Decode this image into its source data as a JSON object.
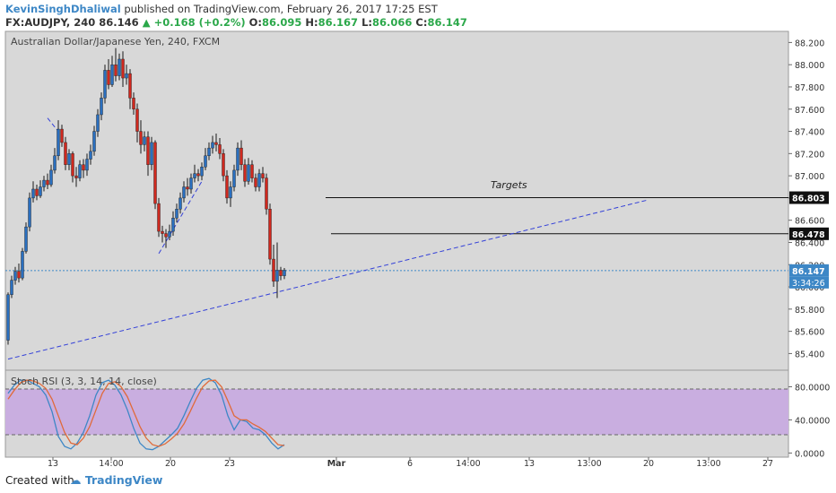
{
  "header": {
    "author": "KevinSinghDhaliwal",
    "published_text": " published on TradingView.com, February 26, 2017 17:25 EST",
    "symbol_line": {
      "symbol": "FX:AUDJPY, 240",
      "price": "86.146",
      "change": "+0.168 (+0.2%)",
      "open_label": "O:",
      "open": "86.095",
      "high_label": "H:",
      "high": "86.167",
      "low_label": "L:",
      "low": "86.066",
      "close_label": "C:",
      "close": "86.147"
    }
  },
  "footer": {
    "created_with": "Created with",
    "brand": "TradingView"
  },
  "chart_data": [
    {
      "type": "candlestick",
      "title": "Australian Dollar/Japanese Yen, 240, FXCM",
      "ylim": [
        85.25,
        88.3
      ],
      "y_ticks": [
        "88.200",
        "88.000",
        "87.800",
        "87.600",
        "87.400",
        "87.200",
        "87.000",
        "86.800",
        "86.600",
        "86.400",
        "86.200",
        "86.000",
        "85.800",
        "85.600",
        "85.400"
      ],
      "x_ticks": [
        "13",
        "14:00",
        "20",
        "23",
        "Mar",
        "6",
        "14:00",
        "13",
        "13:00",
        "20",
        "13:00",
        "27"
      ],
      "candles": [
        [
          85.52,
          85.93,
          85.48,
          85.95
        ],
        [
          85.93,
          86.06,
          85.9,
          86.1
        ],
        [
          86.06,
          86.14,
          86.02,
          86.18
        ],
        [
          86.14,
          86.08,
          86.04,
          86.21
        ],
        [
          86.08,
          86.32,
          86.06,
          86.35
        ],
        [
          86.32,
          86.54,
          86.3,
          86.58
        ],
        [
          86.54,
          86.8,
          86.5,
          86.85
        ],
        [
          86.8,
          86.88,
          86.76,
          86.95
        ],
        [
          86.88,
          86.82,
          86.78,
          86.92
        ],
        [
          86.82,
          86.9,
          86.8,
          86.96
        ],
        [
          86.9,
          86.96,
          86.86,
          87.0
        ],
        [
          86.96,
          86.92,
          86.88,
          87.02
        ],
        [
          86.92,
          87.05,
          86.9,
          87.1
        ],
        [
          87.05,
          87.18,
          87.02,
          87.25
        ],
        [
          87.18,
          87.42,
          87.14,
          87.5
        ],
        [
          87.42,
          87.3,
          87.26,
          87.46
        ],
        [
          87.3,
          87.1,
          87.05,
          87.35
        ],
        [
          87.1,
          87.2,
          87.05,
          87.24
        ],
        [
          87.2,
          87.0,
          86.94,
          87.22
        ],
        [
          87.0,
          86.98,
          86.9,
          87.08
        ],
        [
          86.98,
          87.1,
          86.95,
          87.14
        ],
        [
          87.1,
          87.05,
          86.98,
          87.15
        ],
        [
          87.05,
          87.15,
          87.0,
          87.2
        ],
        [
          87.15,
          87.22,
          87.1,
          87.28
        ],
        [
          87.22,
          87.4,
          87.18,
          87.45
        ],
        [
          87.4,
          87.55,
          87.35,
          87.6
        ],
        [
          87.55,
          87.7,
          87.5,
          87.75
        ],
        [
          87.7,
          87.95,
          87.65,
          88.0
        ],
        [
          87.95,
          87.82,
          87.78,
          88.05
        ],
        [
          87.82,
          88.0,
          87.8,
          88.08
        ],
        [
          88.0,
          87.9,
          87.85,
          88.15
        ],
        [
          87.9,
          88.05,
          87.86,
          88.1
        ],
        [
          88.05,
          87.88,
          87.8,
          88.12
        ],
        [
          87.88,
          87.92,
          87.82,
          88.0
        ],
        [
          87.92,
          87.7,
          87.6,
          87.96
        ],
        [
          87.7,
          87.6,
          87.55,
          87.75
        ],
        [
          87.6,
          87.4,
          87.3,
          87.65
        ],
        [
          87.4,
          87.28,
          87.2,
          87.5
        ],
        [
          87.28,
          87.35,
          87.22,
          87.4
        ],
        [
          87.35,
          87.1,
          87.0,
          87.4
        ],
        [
          87.1,
          87.3,
          87.05,
          87.35
        ],
        [
          87.3,
          86.75,
          86.7,
          87.32
        ],
        [
          86.75,
          86.5,
          86.45,
          86.8
        ],
        [
          86.5,
          86.48,
          86.4,
          86.55
        ],
        [
          86.48,
          86.45,
          86.35,
          86.52
        ],
        [
          86.45,
          86.5,
          86.42,
          86.56
        ],
        [
          86.5,
          86.62,
          86.46,
          86.68
        ],
        [
          86.62,
          86.7,
          86.58,
          86.75
        ],
        [
          86.7,
          86.8,
          86.66,
          86.85
        ],
        [
          86.8,
          86.9,
          86.76,
          86.95
        ],
        [
          86.9,
          86.88,
          86.82,
          86.98
        ],
        [
          86.88,
          86.98,
          86.84,
          87.02
        ],
        [
          86.98,
          87.02,
          86.94,
          87.1
        ],
        [
          87.02,
          87.0,
          86.95,
          87.06
        ],
        [
          87.0,
          87.08,
          86.96,
          87.12
        ],
        [
          87.08,
          87.18,
          87.05,
          87.25
        ],
        [
          87.18,
          87.25,
          87.14,
          87.3
        ],
        [
          87.25,
          87.3,
          87.2,
          87.36
        ],
        [
          87.3,
          87.28,
          87.22,
          87.38
        ],
        [
          87.28,
          87.2,
          87.15,
          87.34
        ],
        [
          87.2,
          87.0,
          86.95,
          87.24
        ],
        [
          87.0,
          86.8,
          86.75,
          87.05
        ],
        [
          86.8,
          86.9,
          86.72,
          86.95
        ],
        [
          86.9,
          87.05,
          86.86,
          87.1
        ],
        [
          87.05,
          87.25,
          87.0,
          87.3
        ],
        [
          87.25,
          87.1,
          87.05,
          87.32
        ],
        [
          87.1,
          86.95,
          86.9,
          87.15
        ],
        [
          86.95,
          87.1,
          86.92,
          87.16
        ],
        [
          87.1,
          86.98,
          86.94,
          87.14
        ],
        [
          86.98,
          86.9,
          86.86,
          87.02
        ],
        [
          86.9,
          87.02,
          86.86,
          87.06
        ],
        [
          87.02,
          86.98,
          86.94,
          87.08
        ],
        [
          86.98,
          86.7,
          86.65,
          87.02
        ],
        [
          86.7,
          86.25,
          86.2,
          86.75
        ],
        [
          86.25,
          86.05,
          86.0,
          86.38
        ],
        [
          86.05,
          86.15,
          85.9,
          86.4
        ],
        [
          86.15,
          86.1,
          86.06,
          86.18
        ],
        [
          86.1,
          86.15,
          86.07,
          86.17
        ]
      ],
      "horizontal_levels": [
        86.803,
        86.478
      ],
      "level_labels": [
        "86.803",
        "86.478"
      ],
      "current_price": 86.147,
      "current_price_label": "86.147",
      "countdown_label": "3:34:26",
      "annotation": "Targets",
      "trendlines": [
        {
          "from_index": 0,
          "from_price": 85.35,
          "to_index": 178,
          "to_price": 86.78
        },
        {
          "from_index": 42,
          "from_price": 86.3,
          "to_index": 54,
          "to_price": 86.95
        },
        {
          "from_index": 11,
          "from_price": 87.52,
          "to_index": 14,
          "to_price": 87.4
        }
      ]
    },
    {
      "type": "line",
      "title": "Stoch RSI (3, 3, 14, 14, close)",
      "ylim": [
        -5,
        100
      ],
      "y_ticks": [
        "80.0000",
        "40.0000",
        "0.0000"
      ],
      "bands": [
        20,
        80
      ],
      "series": [
        {
          "values": [
            72,
            82,
            88,
            88,
            84,
            80,
            70,
            50,
            20,
            8,
            5,
            12,
            25,
            45,
            70,
            85,
            88,
            82,
            70,
            52,
            30,
            12,
            5,
            4,
            8,
            15,
            22,
            30,
            45,
            62,
            78,
            88,
            90,
            85,
            70,
            45,
            28,
            40,
            38,
            30,
            28,
            22,
            12,
            5,
            10
          ]
        },
        {
          "values": [
            65,
            76,
            85,
            88,
            87,
            84,
            78,
            65,
            45,
            25,
            12,
            10,
            18,
            32,
            52,
            72,
            84,
            86,
            80,
            68,
            50,
            32,
            18,
            10,
            8,
            11,
            17,
            24,
            35,
            50,
            66,
            80,
            87,
            88,
            80,
            63,
            45,
            40,
            40,
            35,
            31,
            26,
            18,
            10,
            9
          ]
        }
      ],
      "series_colors": [
        "#3d87c6",
        "#e06a3a"
      ]
    }
  ]
}
